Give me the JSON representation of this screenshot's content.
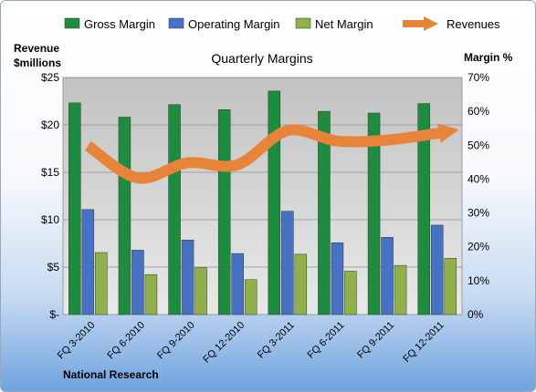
{
  "chart_data": {
    "type": "bar",
    "title": "Quarterly Margins",
    "categories": [
      "FQ 3-2010",
      "FQ 6-2010",
      "FQ 9-2010",
      "FQ 12-2010",
      "FQ 3-2011",
      "FQ 6-2011",
      "FQ 9-2011",
      "FQ 12-2011"
    ],
    "series": [
      {
        "name": "Gross Margin",
        "axis": "right",
        "values": [
          62.5,
          58.3,
          62.0,
          60.5,
          66.0,
          60.0,
          59.5,
          62.3
        ],
        "color": "#1e8c3f"
      },
      {
        "name": "Operating Margin",
        "axis": "right",
        "values": [
          31.0,
          19.0,
          22.0,
          18.0,
          30.5,
          21.2,
          22.8,
          26.4
        ],
        "color": "#4671c4"
      },
      {
        "name": "Net Margin",
        "axis": "right",
        "values": [
          18.3,
          11.8,
          13.8,
          10.3,
          17.8,
          12.8,
          14.5,
          16.6
        ],
        "color": "#8fb04a"
      },
      {
        "name": "Revenues",
        "axis": "left",
        "type": "line",
        "values": [
          17.8,
          14.4,
          16.0,
          15.8,
          19.4,
          18.3,
          18.4,
          19.1
        ],
        "color": "#e8843a"
      }
    ],
    "ylabel": "Revenue $millions",
    "ylabel_right": "Margin %",
    "ylim": [
      0,
      25
    ],
    "ylim_right": [
      0,
      70
    ],
    "yticks": [
      "$-",
      "$5",
      "$10",
      "$15",
      "$20",
      "$25"
    ],
    "yticks_right": [
      "0%",
      "10%",
      "20%",
      "30%",
      "40%",
      "50%",
      "60%",
      "70%"
    ],
    "grid": true,
    "legend": "top",
    "source": "National Research"
  }
}
